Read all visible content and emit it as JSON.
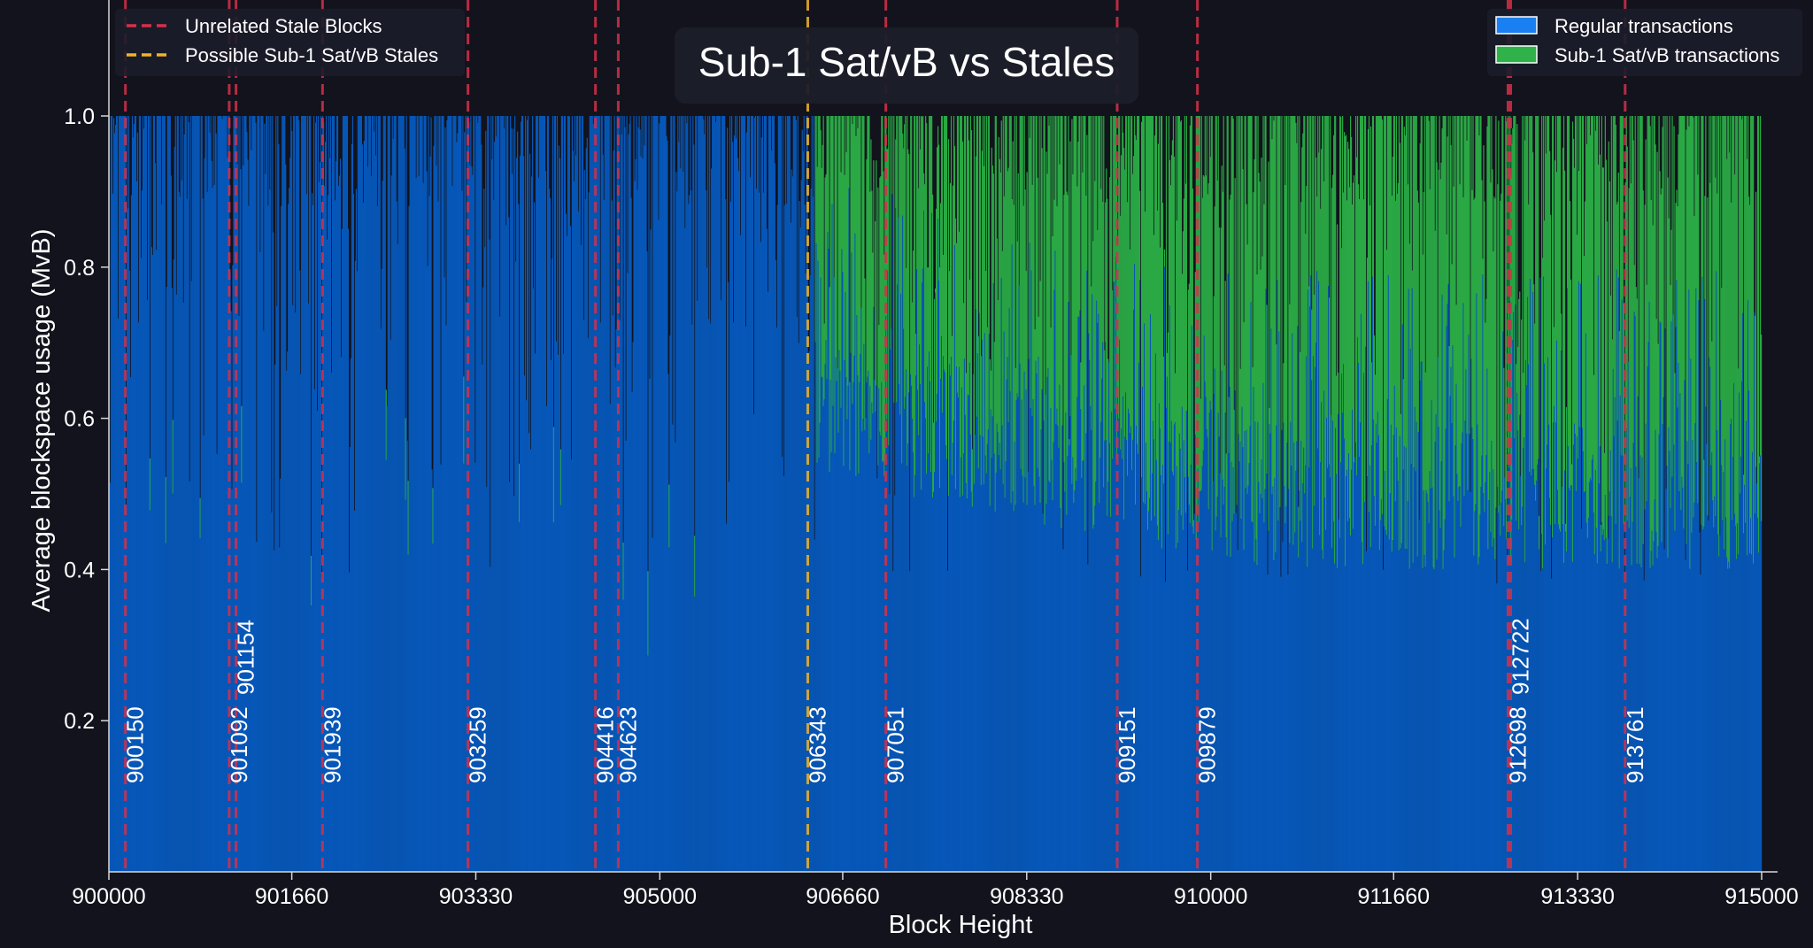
{
  "chart_data": {
    "type": "area",
    "title": "Sub-1 Sat/vB vs Stales",
    "xlabel": "Block Height",
    "ylabel": "Average blockspace usage (MvB)",
    "xlim": [
      900000,
      915000
    ],
    "ylim": [
      0,
      1.0
    ],
    "x_ticks": [
      "900000",
      "901660",
      "903330",
      "905000",
      "906660",
      "908330",
      "910000",
      "911660",
      "913330",
      "915000"
    ],
    "y_ticks": [
      "0.2",
      "0.4",
      "0.6",
      "0.8",
      "1.0"
    ],
    "x_tick_values": [
      900000,
      901660,
      903330,
      905000,
      906660,
      908330,
      910000,
      911660,
      913330,
      915000
    ],
    "y_tick_values": [
      0.2,
      0.4,
      0.6,
      0.8,
      1.0
    ],
    "grid": false,
    "legend_lines": [
      {
        "label": "Unrelated Stale Blocks",
        "color": "#d6304a",
        "style": "dashed"
      },
      {
        "label": "Possible Sub-1 Sat/vB Stales",
        "color": "#f0b429",
        "style": "dashed"
      }
    ],
    "legend_lines_placement": "top-left",
    "legend_areas": [
      {
        "label": "Regular transactions",
        "color": "#1a7ff0"
      },
      {
        "label": "Sub-1 Sat/vB transactions",
        "color": "#2fb24a"
      }
    ],
    "legend_areas_placement": "top-right",
    "series": [
      {
        "name": "Regular transactions",
        "color": "#0757b8",
        "approx_floor": 0.6,
        "max": 1.0
      },
      {
        "name": "Sub-1 Sat/vB transactions",
        "color": "#2aa845",
        "starts_near": 906400,
        "max": 1.0
      }
    ],
    "stale_blocks": [
      {
        "height": 900150,
        "label": "900150",
        "kind": "unrelated"
      },
      {
        "height": 901092,
        "label": "901092",
        "kind": "unrelated"
      },
      {
        "height": 901154,
        "label": "901154",
        "kind": "unrelated"
      },
      {
        "height": 901939,
        "label": "901939",
        "kind": "unrelated"
      },
      {
        "height": 903259,
        "label": "903259",
        "kind": "unrelated"
      },
      {
        "height": 904416,
        "label": "904416",
        "kind": "unrelated"
      },
      {
        "height": 904623,
        "label": "904623",
        "kind": "unrelated"
      },
      {
        "height": 906343,
        "label": "906343",
        "kind": "possible"
      },
      {
        "height": 907051,
        "label": "907051",
        "kind": "unrelated"
      },
      {
        "height": 909151,
        "label": "909151",
        "kind": "unrelated"
      },
      {
        "height": 909879,
        "label": "909879",
        "kind": "unrelated"
      },
      {
        "height": 912698,
        "label": "912698",
        "kind": "unrelated"
      },
      {
        "height": 912722,
        "label": "912722",
        "kind": "unrelated"
      },
      {
        "height": 913761,
        "label": "913761",
        "kind": "unrelated"
      }
    ]
  }
}
